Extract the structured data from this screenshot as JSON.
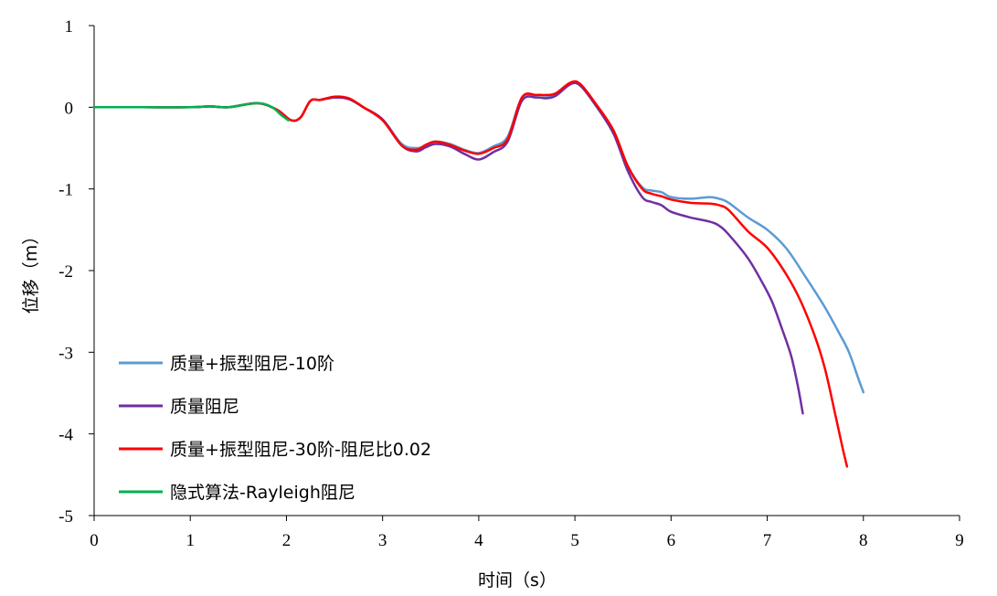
{
  "chart_data": {
    "type": "line",
    "xlabel": "时间（s）",
    "ylabel": "位移（m）",
    "xlim": [
      0,
      9
    ],
    "ylim": [
      -5,
      1
    ],
    "xticks": [
      0,
      1,
      2,
      3,
      4,
      5,
      6,
      7,
      8,
      9
    ],
    "yticks": [
      1,
      0,
      -1,
      -2,
      -3,
      -4,
      -5
    ],
    "grid": false,
    "legend_position": "bottom-left",
    "series": [
      {
        "name": "质量+振型阻尼-10阶",
        "color": "#5b9bd5",
        "points": [
          [
            0,
            0
          ],
          [
            0.5,
            0
          ],
          [
            1.0,
            0
          ],
          [
            1.2,
            0.01
          ],
          [
            1.4,
            0
          ],
          [
            1.7,
            0.05
          ],
          [
            1.9,
            -0.03
          ],
          [
            2.05,
            -0.16
          ],
          [
            2.15,
            -0.12
          ],
          [
            2.25,
            0.08
          ],
          [
            2.35,
            0.09
          ],
          [
            2.5,
            0.12
          ],
          [
            2.65,
            0.1
          ],
          [
            2.8,
            0
          ],
          [
            3.0,
            -0.15
          ],
          [
            3.2,
            -0.45
          ],
          [
            3.35,
            -0.5
          ],
          [
            3.45,
            -0.47
          ],
          [
            3.55,
            -0.42
          ],
          [
            3.7,
            -0.45
          ],
          [
            3.85,
            -0.52
          ],
          [
            4.0,
            -0.56
          ],
          [
            4.15,
            -0.48
          ],
          [
            4.3,
            -0.36
          ],
          [
            4.45,
            0.12
          ],
          [
            4.6,
            0.12
          ],
          [
            4.7,
            0.12
          ],
          [
            4.8,
            0.15
          ],
          [
            4.95,
            0.29
          ],
          [
            5.05,
            0.28
          ],
          [
            5.2,
            0.05
          ],
          [
            5.4,
            -0.3
          ],
          [
            5.55,
            -0.72
          ],
          [
            5.7,
            -0.98
          ],
          [
            5.8,
            -1.02
          ],
          [
            5.9,
            -1.04
          ],
          [
            6.0,
            -1.1
          ],
          [
            6.2,
            -1.12
          ],
          [
            6.4,
            -1.1
          ],
          [
            6.5,
            -1.12
          ],
          [
            6.6,
            -1.17
          ],
          [
            6.8,
            -1.35
          ],
          [
            7.0,
            -1.5
          ],
          [
            7.2,
            -1.73
          ],
          [
            7.4,
            -2.08
          ],
          [
            7.6,
            -2.45
          ],
          [
            7.75,
            -2.77
          ],
          [
            7.85,
            -3.0
          ],
          [
            7.95,
            -3.33
          ],
          [
            8.0,
            -3.49
          ]
        ]
      },
      {
        "name": "质量阻尼",
        "color": "#7030a0",
        "points": [
          [
            0,
            0
          ],
          [
            0.5,
            0
          ],
          [
            1.0,
            0
          ],
          [
            1.2,
            0.01
          ],
          [
            1.4,
            0
          ],
          [
            1.7,
            0.05
          ],
          [
            1.9,
            -0.03
          ],
          [
            2.05,
            -0.16
          ],
          [
            2.15,
            -0.12
          ],
          [
            2.25,
            0.08
          ],
          [
            2.35,
            0.09
          ],
          [
            2.5,
            0.12
          ],
          [
            2.65,
            0.1
          ],
          [
            2.8,
            0
          ],
          [
            3.0,
            -0.15
          ],
          [
            3.2,
            -0.47
          ],
          [
            3.35,
            -0.54
          ],
          [
            3.45,
            -0.49
          ],
          [
            3.55,
            -0.45
          ],
          [
            3.7,
            -0.48
          ],
          [
            3.85,
            -0.57
          ],
          [
            4.0,
            -0.64
          ],
          [
            4.15,
            -0.55
          ],
          [
            4.3,
            -0.42
          ],
          [
            4.45,
            0.08
          ],
          [
            4.6,
            0.12
          ],
          [
            4.7,
            0.11
          ],
          [
            4.8,
            0.14
          ],
          [
            4.95,
            0.28
          ],
          [
            5.05,
            0.27
          ],
          [
            5.2,
            0.05
          ],
          [
            5.4,
            -0.32
          ],
          [
            5.55,
            -0.78
          ],
          [
            5.7,
            -1.1
          ],
          [
            5.8,
            -1.16
          ],
          [
            5.9,
            -1.2
          ],
          [
            6.0,
            -1.28
          ],
          [
            6.2,
            -1.35
          ],
          [
            6.4,
            -1.4
          ],
          [
            6.5,
            -1.45
          ],
          [
            6.6,
            -1.56
          ],
          [
            6.8,
            -1.85
          ],
          [
            6.95,
            -2.15
          ],
          [
            7.05,
            -2.38
          ],
          [
            7.15,
            -2.7
          ],
          [
            7.25,
            -3.05
          ],
          [
            7.32,
            -3.42
          ],
          [
            7.37,
            -3.75
          ]
        ]
      },
      {
        "name": "质量+振型阻尼-30阶-阻尼比0.02",
        "color": "#ff0000",
        "points": [
          [
            0,
            0
          ],
          [
            0.5,
            0
          ],
          [
            1.0,
            0
          ],
          [
            1.2,
            0.01
          ],
          [
            1.4,
            0
          ],
          [
            1.7,
            0.05
          ],
          [
            1.9,
            -0.03
          ],
          [
            2.05,
            -0.16
          ],
          [
            2.15,
            -0.12
          ],
          [
            2.25,
            0.08
          ],
          [
            2.35,
            0.09
          ],
          [
            2.5,
            0.13
          ],
          [
            2.65,
            0.11
          ],
          [
            2.8,
            0
          ],
          [
            3.0,
            -0.16
          ],
          [
            3.2,
            -0.47
          ],
          [
            3.35,
            -0.52
          ],
          [
            3.45,
            -0.46
          ],
          [
            3.55,
            -0.42
          ],
          [
            3.7,
            -0.46
          ],
          [
            3.85,
            -0.53
          ],
          [
            4.0,
            -0.57
          ],
          [
            4.15,
            -0.5
          ],
          [
            4.3,
            -0.39
          ],
          [
            4.45,
            0.12
          ],
          [
            4.6,
            0.15
          ],
          [
            4.7,
            0.15
          ],
          [
            4.8,
            0.17
          ],
          [
            4.95,
            0.3
          ],
          [
            5.05,
            0.29
          ],
          [
            5.2,
            0.07
          ],
          [
            5.4,
            -0.28
          ],
          [
            5.55,
            -0.72
          ],
          [
            5.7,
            -1.0
          ],
          [
            5.8,
            -1.06
          ],
          [
            5.9,
            -1.09
          ],
          [
            6.0,
            -1.13
          ],
          [
            6.2,
            -1.17
          ],
          [
            6.4,
            -1.18
          ],
          [
            6.5,
            -1.2
          ],
          [
            6.6,
            -1.26
          ],
          [
            6.8,
            -1.52
          ],
          [
            7.0,
            -1.72
          ],
          [
            7.2,
            -2.05
          ],
          [
            7.35,
            -2.38
          ],
          [
            7.5,
            -2.82
          ],
          [
            7.6,
            -3.2
          ],
          [
            7.7,
            -3.72
          ],
          [
            7.78,
            -4.15
          ],
          [
            7.83,
            -4.4
          ]
        ]
      },
      {
        "name": "隐式算法-Rayleigh阻尼",
        "color": "#00b050",
        "points": [
          [
            0,
            0
          ],
          [
            0.5,
            0
          ],
          [
            1.0,
            0
          ],
          [
            1.2,
            0.01
          ],
          [
            1.4,
            0
          ],
          [
            1.7,
            0.05
          ],
          [
            1.85,
            0
          ],
          [
            1.95,
            -0.1
          ],
          [
            2.02,
            -0.16
          ]
        ]
      }
    ]
  }
}
